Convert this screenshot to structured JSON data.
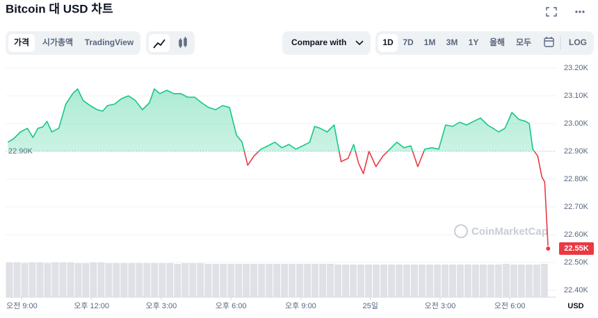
{
  "header": {
    "title": "Bitcoin 대 USD 차트",
    "tabs": [
      "가격",
      "시가총액",
      "TradingView"
    ],
    "compare": "Compare with",
    "ranges": [
      "1D",
      "7D",
      "1M",
      "3M",
      "1Y",
      "올해",
      "모두"
    ],
    "log": "LOG"
  },
  "chart_data": {
    "type": "line",
    "watermark": "CoinMarketCap",
    "y_axis_label": "USD",
    "x": [
      8.4,
      8.64,
      8.94,
      9.24,
      9.48,
      9.69,
      9.9,
      10.08,
      10.29,
      10.59,
      10.89,
      11.19,
      11.4,
      11.64,
      11.94,
      12.24,
      12.48,
      12.69,
      12.99,
      13.29,
      13.59,
      13.89,
      14.19,
      14.49,
      14.7,
      14.94,
      15.24,
      15.54,
      15.84,
      16.14,
      16.44,
      16.74,
      17.04,
      17.34,
      17.64,
      17.94,
      18.24,
      18.48,
      18.72,
      18.99,
      19.29,
      19.59,
      19.89,
      20.19,
      20.49,
      20.79,
      21.09,
      21.39,
      21.6,
      21.84,
      22.14,
      22.44,
      22.74,
      23.04,
      23.28,
      23.49,
      23.7,
      23.94,
      24.24,
      24.54,
      24.84,
      25.14,
      25.44,
      25.74,
      26.04,
      26.34,
      26.64,
      26.94,
      27.24,
      27.54,
      27.84,
      28.14,
      28.44,
      28.74,
      29.04,
      29.28,
      29.52,
      29.79,
      30.09,
      30.39,
      30.69,
      30.84,
      30.99,
      31.2,
      31.38,
      31.5,
      31.65
    ],
    "series": [
      {
        "name": "Bitcoin",
        "color": "#16c784",
        "color_below": "#ea3943",
        "values": [
          22933,
          22945,
          22970,
          22983,
          22950,
          22983,
          22988,
          23008,
          22970,
          22983,
          23070,
          23108,
          23125,
          23083,
          23065,
          23050,
          23045,
          23065,
          23070,
          23090,
          23100,
          23083,
          23050,
          23075,
          23125,
          23108,
          23120,
          23108,
          23108,
          23095,
          23095,
          23075,
          23058,
          23050,
          23065,
          23058,
          22958,
          22933,
          22850,
          22883,
          22908,
          22920,
          22933,
          22913,
          22925,
          22908,
          22920,
          22933,
          22990,
          22983,
          22970,
          22995,
          22863,
          22875,
          22925,
          22858,
          22820,
          22900,
          22845,
          22883,
          22908,
          22933,
          22913,
          22920,
          22845,
          22908,
          22913,
          22908,
          22995,
          22990,
          23005,
          22995,
          23008,
          23020,
          22995,
          22983,
          22970,
          22983,
          23040,
          23015,
          23008,
          23000,
          22908,
          22883,
          22808,
          22790,
          22550
        ]
      }
    ],
    "reference": {
      "value": 22900,
      "label": "22.90K"
    },
    "current": {
      "value": 22550,
      "label": "22.55K"
    },
    "volume": {
      "color": "#dfe1e6",
      "values": [
        50,
        50,
        49,
        50,
        50,
        49,
        50,
        50,
        50,
        49,
        49,
        50,
        50,
        49,
        49,
        49,
        49,
        49,
        49,
        49,
        49,
        49,
        48,
        49,
        49,
        49,
        48,
        48,
        48,
        48,
        48,
        48,
        48,
        48,
        48,
        48,
        48,
        48,
        48,
        48,
        48,
        48,
        48,
        47,
        47,
        47,
        47,
        47,
        47,
        47,
        47,
        47,
        47,
        47,
        47,
        47,
        47,
        47,
        47,
        47,
        47,
        47,
        47,
        47,
        47,
        48,
        47,
        47,
        47,
        47,
        48
      ]
    },
    "xlim": [
      8.3,
      32.0
    ],
    "xticks": [
      {
        "value": 9,
        "label": "오전 9:00"
      },
      {
        "value": 12,
        "label": "오후 12:00"
      },
      {
        "value": 15,
        "label": "오후 3:00"
      },
      {
        "value": 18,
        "label": "오후 6:00"
      },
      {
        "value": 21,
        "label": "오후 9:00"
      },
      {
        "value": 24,
        "label": "25일"
      },
      {
        "value": 27,
        "label": "오전 3:00"
      },
      {
        "value": 30,
        "label": "오전 6:00"
      }
    ],
    "ylim": [
      22400,
      23200
    ],
    "yticks": [
      {
        "value": 22400,
        "label": "22.40K"
      },
      {
        "value": 22500,
        "label": "22.50K"
      },
      {
        "value": 22600,
        "label": "22.60K"
      },
      {
        "value": 22700,
        "label": "22.70K"
      },
      {
        "value": 22800,
        "label": "22.80K"
      },
      {
        "value": 22900,
        "label": "22.90K"
      },
      {
        "value": 23000,
        "label": "23.00K"
      },
      {
        "value": 23100,
        "label": "23.10K"
      },
      {
        "value": 23200,
        "label": "23.20K"
      }
    ],
    "grid": true
  }
}
